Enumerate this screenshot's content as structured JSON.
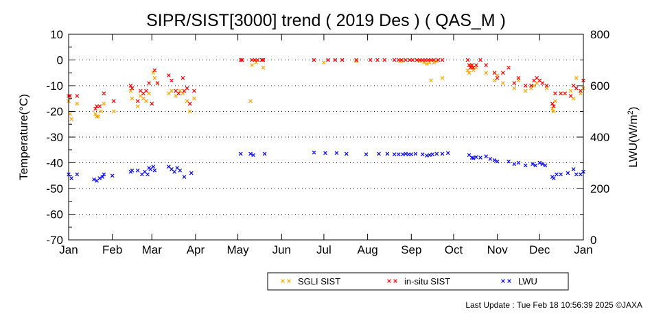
{
  "chart_data": {
    "type": "scatter",
    "title": "SIPR/SIST[3000] trend ( 2019 Des ) ( QAS_M )",
    "ylabel": "Temperature(°C)",
    "y2label_main": "LWU(W/m",
    "y2label_sup": "2",
    "y2label_end": ")",
    "ylim": [
      -70,
      10
    ],
    "y2lim": [
      0,
      800
    ],
    "yticks": [
      "10",
      "0",
      "-10",
      "-20",
      "-30",
      "-40",
      "-50",
      "-60",
      "-70"
    ],
    "y2ticks": [
      "800",
      "600",
      "400",
      "200",
      "0"
    ],
    "xticks": [
      "Jan",
      "Feb",
      "Mar",
      "Apr",
      "May",
      "Jun",
      "Jul",
      "Aug",
      "Sep",
      "Oct",
      "Nov",
      "Dec",
      "Jan"
    ],
    "grid": "dotted horizontal every 10 °C",
    "legend_position": "bottom-right",
    "marker": "×",
    "x_unit": "day of year 2019",
    "series": [
      {
        "name": "SGLI SIST",
        "color": "#ffa500",
        "axis": "left",
        "points": [
          [
            1,
            -16
          ],
          [
            2,
            -21
          ],
          [
            3,
            -23
          ],
          [
            7,
            -17
          ],
          [
            20,
            -21
          ],
          [
            21,
            -22
          ],
          [
            22,
            -22
          ],
          [
            24,
            -20
          ],
          [
            26,
            -17
          ],
          [
            33,
            -20
          ],
          [
            45,
            -12
          ],
          [
            46,
            -15
          ],
          [
            50,
            -18
          ],
          [
            52,
            -14
          ],
          [
            54,
            -15
          ],
          [
            56,
            -16
          ],
          [
            58,
            -13
          ],
          [
            61,
            -5
          ],
          [
            62,
            -7
          ],
          [
            64,
            -9
          ],
          [
            72,
            -13
          ],
          [
            74,
            -12
          ],
          [
            77,
            -14
          ],
          [
            80,
            -12
          ],
          [
            82,
            -13
          ],
          [
            85,
            -16
          ],
          [
            87,
            -20
          ],
          [
            90,
            -15
          ],
          [
            130,
            -16
          ],
          [
            131,
            -2
          ],
          [
            134,
            -1
          ],
          [
            139,
            -3
          ],
          [
            182,
            -1
          ],
          [
            205,
            -0.5
          ],
          [
            236,
            -0.5
          ],
          [
            238,
            -0.3
          ],
          [
            250,
            -0.5
          ],
          [
            253,
            -1
          ],
          [
            255,
            -1.5
          ],
          [
            257,
            -1
          ],
          [
            258,
            -8
          ],
          [
            260,
            -1
          ],
          [
            262,
            -0.5
          ],
          [
            266,
            -7
          ],
          [
            284,
            -4
          ],
          [
            285,
            -5
          ],
          [
            286,
            -2
          ],
          [
            287,
            -3
          ],
          [
            288,
            -4
          ],
          [
            290,
            -3
          ],
          [
            297,
            -5
          ],
          [
            303,
            -8
          ],
          [
            305,
            -6
          ],
          [
            309,
            -9
          ],
          [
            317,
            -11
          ],
          [
            320,
            -8
          ],
          [
            325,
            -12
          ],
          [
            329,
            -11
          ],
          [
            331,
            -10
          ],
          [
            333,
            -9
          ],
          [
            335,
            -8
          ],
          [
            340,
            -11
          ],
          [
            344,
            -19
          ],
          [
            345,
            -20
          ],
          [
            346,
            -16
          ],
          [
            350,
            -13
          ],
          [
            357,
            -12
          ],
          [
            359,
            -15
          ],
          [
            361,
            -7
          ],
          [
            364,
            -13
          ],
          [
            366,
            -11
          ]
        ]
      },
      {
        "name": "in-situ SIST",
        "color": "#ff0000",
        "axis": "left",
        "points": [
          [
            1,
            -14
          ],
          [
            2,
            -14
          ],
          [
            7,
            -14
          ],
          [
            20,
            -19
          ],
          [
            21,
            -18
          ],
          [
            23,
            -18
          ],
          [
            26,
            -13
          ],
          [
            33,
            -16
          ],
          [
            45,
            -10
          ],
          [
            46,
            -11
          ],
          [
            50,
            -16
          ],
          [
            52,
            -12
          ],
          [
            54,
            -13
          ],
          [
            56,
            -12
          ],
          [
            58,
            -9
          ],
          [
            60,
            -17
          ],
          [
            62,
            -4
          ],
          [
            64,
            -9
          ],
          [
            72,
            -6
          ],
          [
            74,
            -8
          ],
          [
            77,
            -12
          ],
          [
            79,
            -13
          ],
          [
            82,
            -7
          ],
          [
            83,
            -12
          ],
          [
            85,
            -11
          ],
          [
            87,
            -17
          ],
          [
            90,
            -12
          ],
          [
            123,
            0
          ],
          [
            124,
            0
          ],
          [
            131,
            0
          ],
          [
            133,
            0
          ],
          [
            135,
            0
          ],
          [
            138,
            0
          ],
          [
            139,
            0
          ],
          [
            175,
            0
          ],
          [
            185,
            0
          ],
          [
            190,
            0
          ],
          [
            195,
            0
          ],
          [
            205,
            0
          ],
          [
            215,
            0
          ],
          [
            220,
            0
          ],
          [
            225,
            0
          ],
          [
            232,
            0
          ],
          [
            235,
            0
          ],
          [
            237,
            0
          ],
          [
            240,
            0
          ],
          [
            243,
            0
          ],
          [
            245,
            0
          ],
          [
            248,
            0
          ],
          [
            250,
            0
          ],
          [
            252,
            0
          ],
          [
            254,
            0
          ],
          [
            256,
            0
          ],
          [
            258,
            0
          ],
          [
            260,
            0
          ],
          [
            263,
            0
          ],
          [
            266,
            0
          ],
          [
            284,
            0
          ],
          [
            285,
            -2
          ],
          [
            286,
            -3
          ],
          [
            287,
            -2
          ],
          [
            288,
            -3
          ],
          [
            290,
            -2
          ],
          [
            293,
            0
          ],
          [
            297,
            -2
          ],
          [
            303,
            -5
          ],
          [
            305,
            -7
          ],
          [
            309,
            -5
          ],
          [
            313,
            -3
          ],
          [
            317,
            -9
          ],
          [
            320,
            -7
          ],
          [
            325,
            -10
          ],
          [
            329,
            -10
          ],
          [
            331,
            -8
          ],
          [
            333,
            -7
          ],
          [
            335,
            -8
          ],
          [
            337,
            -9
          ],
          [
            340,
            -10
          ],
          [
            344,
            -17
          ],
          [
            345,
            -18
          ],
          [
            346,
            -13
          ],
          [
            350,
            -13
          ],
          [
            353,
            -13
          ],
          [
            357,
            -14
          ],
          [
            359,
            -10
          ],
          [
            361,
            -11
          ],
          [
            364,
            -12
          ],
          [
            366,
            -8
          ]
        ]
      },
      {
        "name": "LWU",
        "color": "#0000ff",
        "axis": "right",
        "points": [
          [
            1,
            255
          ],
          [
            3,
            240
          ],
          [
            7,
            255
          ],
          [
            19,
            235
          ],
          [
            21,
            230
          ],
          [
            23,
            240
          ],
          [
            25,
            245
          ],
          [
            26,
            255
          ],
          [
            32,
            250
          ],
          [
            45,
            265
          ],
          [
            46,
            270
          ],
          [
            50,
            270
          ],
          [
            53,
            255
          ],
          [
            55,
            265
          ],
          [
            57,
            255
          ],
          [
            58,
            280
          ],
          [
            59,
            275
          ],
          [
            61,
            285
          ],
          [
            62,
            270
          ],
          [
            72,
            285
          ],
          [
            74,
            275
          ],
          [
            76,
            265
          ],
          [
            78,
            280
          ],
          [
            80,
            270
          ],
          [
            83,
            245
          ],
          [
            88,
            260
          ],
          [
            123,
            335
          ],
          [
            130,
            335
          ],
          [
            132,
            330
          ],
          [
            140,
            335
          ],
          [
            175,
            340
          ],
          [
            183,
            338
          ],
          [
            191,
            338
          ],
          [
            198,
            335
          ],
          [
            212,
            333
          ],
          [
            221,
            335
          ],
          [
            227,
            335
          ],
          [
            232,
            333
          ],
          [
            235,
            333
          ],
          [
            238,
            333
          ],
          [
            240,
            335
          ],
          [
            242,
            333
          ],
          [
            244,
            333
          ],
          [
            247,
            335
          ],
          [
            252,
            333
          ],
          [
            255,
            328
          ],
          [
            257,
            330
          ],
          [
            259,
            333
          ],
          [
            262,
            335
          ],
          [
            266,
            335
          ],
          [
            270,
            338
          ],
          [
            285,
            330
          ],
          [
            287,
            320
          ],
          [
            288,
            318
          ],
          [
            290,
            322
          ],
          [
            293,
            320
          ],
          [
            297,
            325
          ],
          [
            300,
            315
          ],
          [
            303,
            310
          ],
          [
            305,
            305
          ],
          [
            313,
            305
          ],
          [
            317,
            295
          ],
          [
            320,
            300
          ],
          [
            325,
            290
          ],
          [
            330,
            295
          ],
          [
            332,
            290
          ],
          [
            335,
            300
          ],
          [
            337,
            295
          ],
          [
            339,
            290
          ],
          [
            344,
            245
          ],
          [
            345,
            240
          ],
          [
            347,
            255
          ],
          [
            350,
            255
          ],
          [
            355,
            260
          ],
          [
            359,
            275
          ],
          [
            361,
            255
          ],
          [
            364,
            255
          ],
          [
            366,
            265
          ]
        ]
      }
    ]
  },
  "footer": {
    "last_update": "Last Update : Tue Feb 18 10:56:39 2025  ©JAXA"
  }
}
